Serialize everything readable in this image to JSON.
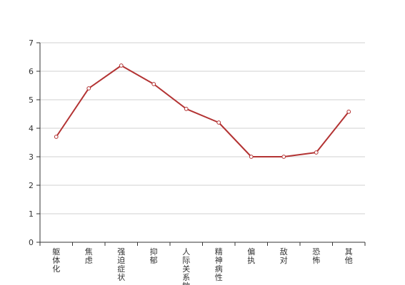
{
  "chart_data": {
    "type": "line",
    "title": "",
    "xlabel": "",
    "ylabel": "",
    "categories": [
      "躯体化",
      "焦虑",
      "强迫症状",
      "抑郁",
      "人际关系敏感",
      "精神病性",
      "偏执",
      "敌对",
      "恐怖",
      "其他"
    ],
    "series": [
      {
        "values": [
          3.7,
          5.4,
          6.2,
          5.55,
          4.68,
          4.2,
          3.0,
          3.0,
          3.15,
          4.58
        ],
        "color": "#b33333"
      }
    ],
    "ylim": [
      0,
      7
    ],
    "yticks": [
      0,
      1,
      2,
      3,
      4,
      5,
      6,
      7
    ],
    "grid": true,
    "legend": "none"
  }
}
